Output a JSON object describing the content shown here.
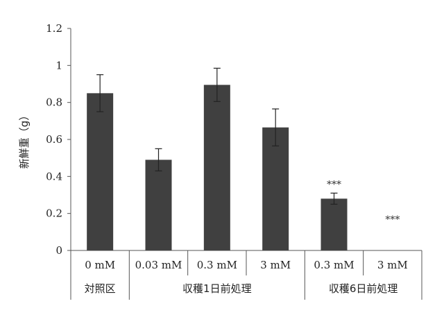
{
  "chart_data": {
    "type": "bar",
    "ylabel": "新鮮重（g）",
    "ylim": [
      0,
      1.2
    ],
    "yticks": [
      "0",
      "0.2",
      "0.4",
      "0.6",
      "0.8",
      "1",
      "1.2"
    ],
    "categories": [
      "0 mM",
      "0.03 mM",
      "0.3 mM",
      "3 mM",
      "0.3 mM",
      "3 mM"
    ],
    "values": [
      0.85,
      0.49,
      0.895,
      0.665,
      0.28,
      0
    ],
    "errors": [
      0.1,
      0.06,
      0.09,
      0.1,
      0.03,
      0
    ],
    "annotations": [
      "",
      "",
      "",
      "",
      "***",
      "***"
    ],
    "groups": [
      {
        "label": "対照区",
        "span": [
          0,
          0
        ]
      },
      {
        "label": "収穫1日前処理",
        "span": [
          1,
          3
        ]
      },
      {
        "label": "収穫6日前処理",
        "span": [
          4,
          5
        ]
      }
    ],
    "bar_color": "#404040",
    "grid": false
  }
}
